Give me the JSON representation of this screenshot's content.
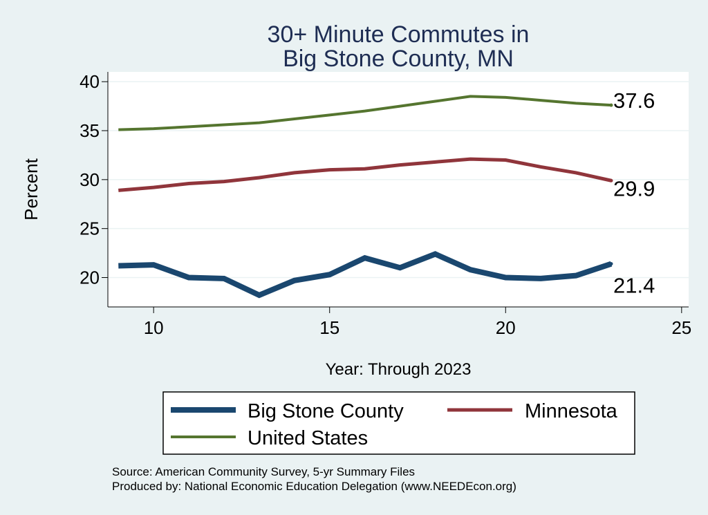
{
  "chart_data": {
    "type": "line",
    "title_lines": [
      "30+ Minute Commutes in",
      "Big Stone County, MN"
    ],
    "xlabel": "Year: Through 2023",
    "ylabel": "Percent",
    "xlim": [
      8.7,
      25.2
    ],
    "ylim": [
      17,
      41
    ],
    "xticks": [
      10,
      15,
      20,
      25
    ],
    "yticks": [
      20,
      25,
      30,
      35,
      40
    ],
    "grid": true,
    "x": [
      9,
      10,
      11,
      12,
      13,
      14,
      15,
      16,
      17,
      18,
      19,
      20,
      21,
      22,
      23
    ],
    "series": [
      {
        "name": "Big Stone County",
        "color": "#1a476f",
        "values": [
          21.2,
          21.3,
          20.0,
          19.9,
          18.2,
          19.7,
          20.3,
          22.0,
          21.0,
          22.4,
          20.8,
          20.0,
          19.9,
          20.2,
          21.4
        ],
        "end_label": "21.4"
      },
      {
        "name": "Minnesota",
        "color": "#90353b",
        "values": [
          28.9,
          29.2,
          29.6,
          29.8,
          30.2,
          30.7,
          31.0,
          31.1,
          31.5,
          31.8,
          32.1,
          32.0,
          31.3,
          30.7,
          29.9
        ],
        "end_label": "29.9"
      },
      {
        "name": "United States",
        "color": "#55752f",
        "values": [
          35.1,
          35.2,
          35.4,
          35.6,
          35.8,
          36.2,
          36.6,
          37.0,
          37.5,
          38.0,
          38.5,
          38.4,
          38.1,
          37.8,
          37.6
        ],
        "end_label": "37.6"
      }
    ],
    "legend": [
      {
        "name": "Big Stone County",
        "color": "#1a476f"
      },
      {
        "name": "Minnesota",
        "color": "#90353b"
      },
      {
        "name": "United States",
        "color": "#55752f"
      }
    ],
    "notes": [
      "Source: American Community Survey, 5-yr Summary Files",
      "Produced by: National Economic Education Delegation (www.NEEDEcon.org)"
    ]
  },
  "colors": {
    "background": "#eaf2f3",
    "plot_background": "#ffffff",
    "title": "#1e2d53",
    "grid": "#eaf2f3",
    "axis": "#000000"
  }
}
